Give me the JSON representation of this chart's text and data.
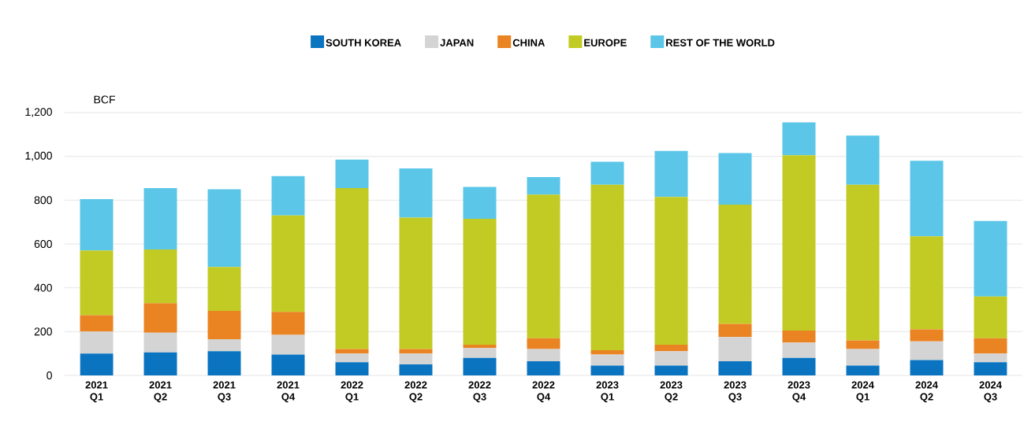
{
  "chart_data": {
    "type": "bar",
    "stacked": true,
    "ylabel": "BCF",
    "categories": [
      "2021 Q1",
      "2021 Q2",
      "2021 Q3",
      "2021 Q4",
      "2022 Q1",
      "2022 Q2",
      "2022 Q3",
      "2022 Q4",
      "2023 Q1",
      "2023 Q2",
      "2023 Q3",
      "2023 Q4",
      "2024 Q1",
      "2024 Q2",
      "2024 Q3"
    ],
    "series": [
      {
        "name": "SOUTH KOREA",
        "color": "#0a74c0",
        "values": [
          100,
          105,
          110,
          95,
          60,
          50,
          80,
          65,
          45,
          45,
          65,
          80,
          45,
          70,
          60
        ]
      },
      {
        "name": "JAPAN",
        "color": "#d4d4d4",
        "values": [
          100,
          90,
          55,
          90,
          40,
          50,
          45,
          55,
          50,
          65,
          110,
          70,
          75,
          85,
          40
        ]
      },
      {
        "name": "CHINA",
        "color": "#ea8321",
        "values": [
          75,
          135,
          130,
          105,
          20,
          20,
          15,
          50,
          20,
          30,
          60,
          55,
          40,
          55,
          70
        ]
      },
      {
        "name": "EUROPE",
        "color": "#c2cb23",
        "values": [
          295,
          245,
          200,
          440,
          735,
          600,
          575,
          655,
          755,
          675,
          545,
          800,
          710,
          425,
          190
        ]
      },
      {
        "name": "REST OF THE WORLD",
        "color": "#5bc6e8",
        "values": [
          235,
          280,
          355,
          180,
          130,
          225,
          145,
          80,
          105,
          210,
          235,
          150,
          225,
          345,
          345
        ]
      }
    ],
    "ylim": [
      0,
      1200
    ],
    "yticks": [
      0,
      200,
      400,
      600,
      800,
      {
        "value": 1000,
        "label": "1,000"
      },
      {
        "value": 1200,
        "label": "1,200"
      }
    ],
    "grid": "y",
    "legend": "top"
  }
}
